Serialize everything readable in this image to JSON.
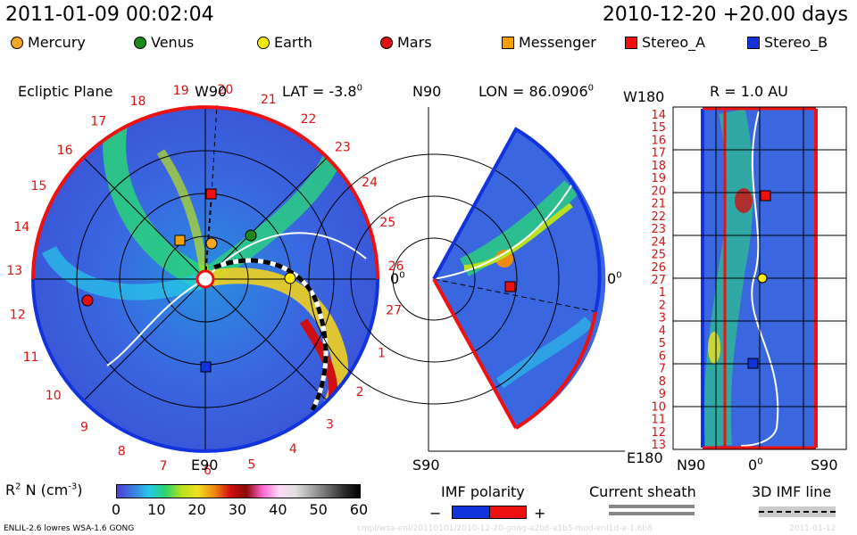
{
  "header": {
    "datetime": "2011-01-09 00:02:04",
    "reference": "2010-12-20 +20.00 days"
  },
  "legend_bodies": [
    {
      "name": "Mercury",
      "color": "#f5a623",
      "shape": "circle"
    },
    {
      "name": "Venus",
      "color": "#1a8a1a",
      "shape": "circle"
    },
    {
      "name": "Earth",
      "color": "#ffee00",
      "shape": "circle"
    },
    {
      "name": "Mars",
      "color": "#e01010",
      "shape": "circle"
    },
    {
      "name": "Messenger",
      "color": "#f5a000",
      "shape": "square"
    },
    {
      "name": "Stereo_A",
      "color": "#ee1111",
      "shape": "square"
    },
    {
      "name": "Stereo_B",
      "color": "#1133dd",
      "shape": "square"
    }
  ],
  "panels": {
    "ecliptic": {
      "title": "Ecliptic Plane",
      "top_label": "W90",
      "bottom_label": "E90",
      "right_label": "0",
      "lat_label": "LAT = -3.8",
      "deg": "0"
    },
    "meridional": {
      "top_label": "N90",
      "bottom_label": "S90",
      "lon_label": "LON = 86.0906",
      "deg": "0",
      "right_label": "0"
    },
    "radial": {
      "top_left": "W180",
      "bottom_left": "E180",
      "r_label": "R = 1.0 AU",
      "x_left": "N90",
      "x_mid": "0",
      "x_right": "S90",
      "deg": "0"
    }
  },
  "carrington_ticks": {
    "outer": [
      "20",
      "21",
      "22",
      "23",
      "24",
      "25",
      "26",
      "27",
      "1",
      "2",
      "3",
      "4",
      "5",
      "6",
      "7",
      "8",
      "9",
      "10",
      "11",
      "12",
      "13",
      "14",
      "15",
      "16",
      "17",
      "18",
      "19"
    ],
    "radial_panel": [
      "14",
      "15",
      "16",
      "17",
      "18",
      "19",
      "20",
      "21",
      "22",
      "23",
      "24",
      "25",
      "26",
      "27",
      "1",
      "2",
      "3",
      "4",
      "5",
      "6",
      "7",
      "8",
      "9",
      "10",
      "11",
      "12",
      "13"
    ]
  },
  "colorbar": {
    "label": "R",
    "label_sup": "2",
    "label_rest": " N (cm",
    "label_sup2": "-3",
    "label_end": ")",
    "ticks": [
      "0",
      "10",
      "20",
      "30",
      "40",
      "50",
      "60"
    ],
    "stops": [
      "#4b3fd6",
      "#3a7de0",
      "#27c9e8",
      "#2bd46a",
      "#b8e01f",
      "#f0e020",
      "#f08a10",
      "#d01010",
      "#8a0808",
      "#ff66d0",
      "#ffd8f6",
      "#e0e0e0",
      "#a8a8a8",
      "#6c6c6c",
      "#2e2e2e",
      "#000000"
    ]
  },
  "legend_bottom": {
    "imf_title": "IMF polarity",
    "minus": "−",
    "plus": "+",
    "sheath_title": "Current sheath",
    "imf3d_title": "3D IMF line"
  },
  "footer": {
    "model": "ENLIL-2.6 lowres WSA-1.6 GONG",
    "run_id": "cmpl/wsa-enl/20110101/2010-12-20-gong-a2b8-a1b5-mod-enl1d-a-1.6b8",
    "date": "2011-01-12"
  },
  "colors": {
    "red_polarity": "#ee1111",
    "blue_polarity": "#1133dd",
    "background_density": "#3a5ee0"
  },
  "icons": [
    "sun-icon"
  ]
}
